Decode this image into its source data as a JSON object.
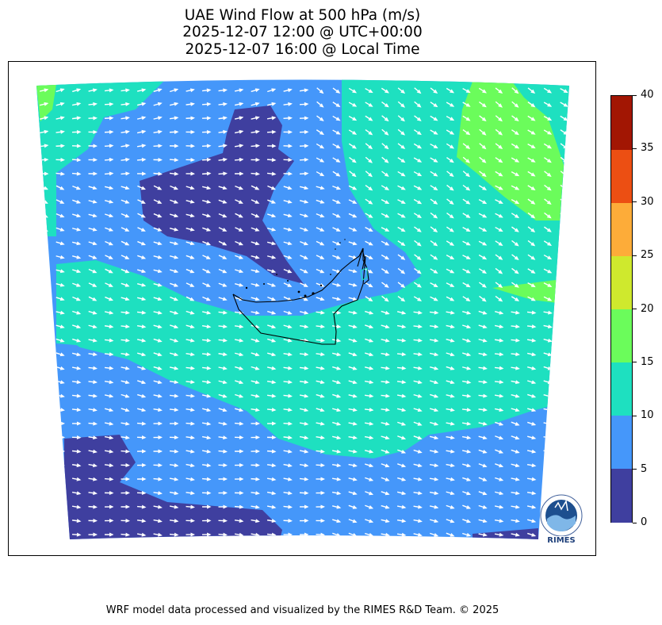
{
  "title": {
    "line1": "UAE Wind Flow at 500 hPa (m/s)",
    "line2": "2025-12-07 12:00 @ UTC+00:00",
    "line3": "2025-12-07 16:00 @ Local Time"
  },
  "colorbar": {
    "ticks": [
      "0",
      "5",
      "10",
      "15",
      "20",
      "25",
      "30",
      "35",
      "40"
    ],
    "levels": [
      {
        "range": [
          0,
          5
        ],
        "color": "#3f3f9f"
      },
      {
        "range": [
          5,
          10
        ],
        "color": "#4597fa"
      },
      {
        "range": [
          10,
          15
        ],
        "color": "#1ee0c0"
      },
      {
        "range": [
          15,
          20
        ],
        "color": "#6bfc5b"
      },
      {
        "range": [
          20,
          25
        ],
        "color": "#cfe92d"
      },
      {
        "range": [
          25,
          30
        ],
        "color": "#fdac39"
      },
      {
        "range": [
          30,
          35
        ],
        "color": "#ec4f13"
      },
      {
        "range": [
          35,
          40
        ],
        "color": "#a21603"
      }
    ]
  },
  "map": {
    "region": "UAE",
    "variable": "wind speed at 500 hPa",
    "units": "m/s",
    "vector_color": "#ffffff",
    "border_color": "#000000",
    "dominant_flow": "west-northwest to east-southeast"
  },
  "logo": {
    "icon": "rimes-globe-logo",
    "text": "RIMES"
  },
  "footer": "WRF model data processed and visualized by the RIMES R&D Team. © 2025"
}
